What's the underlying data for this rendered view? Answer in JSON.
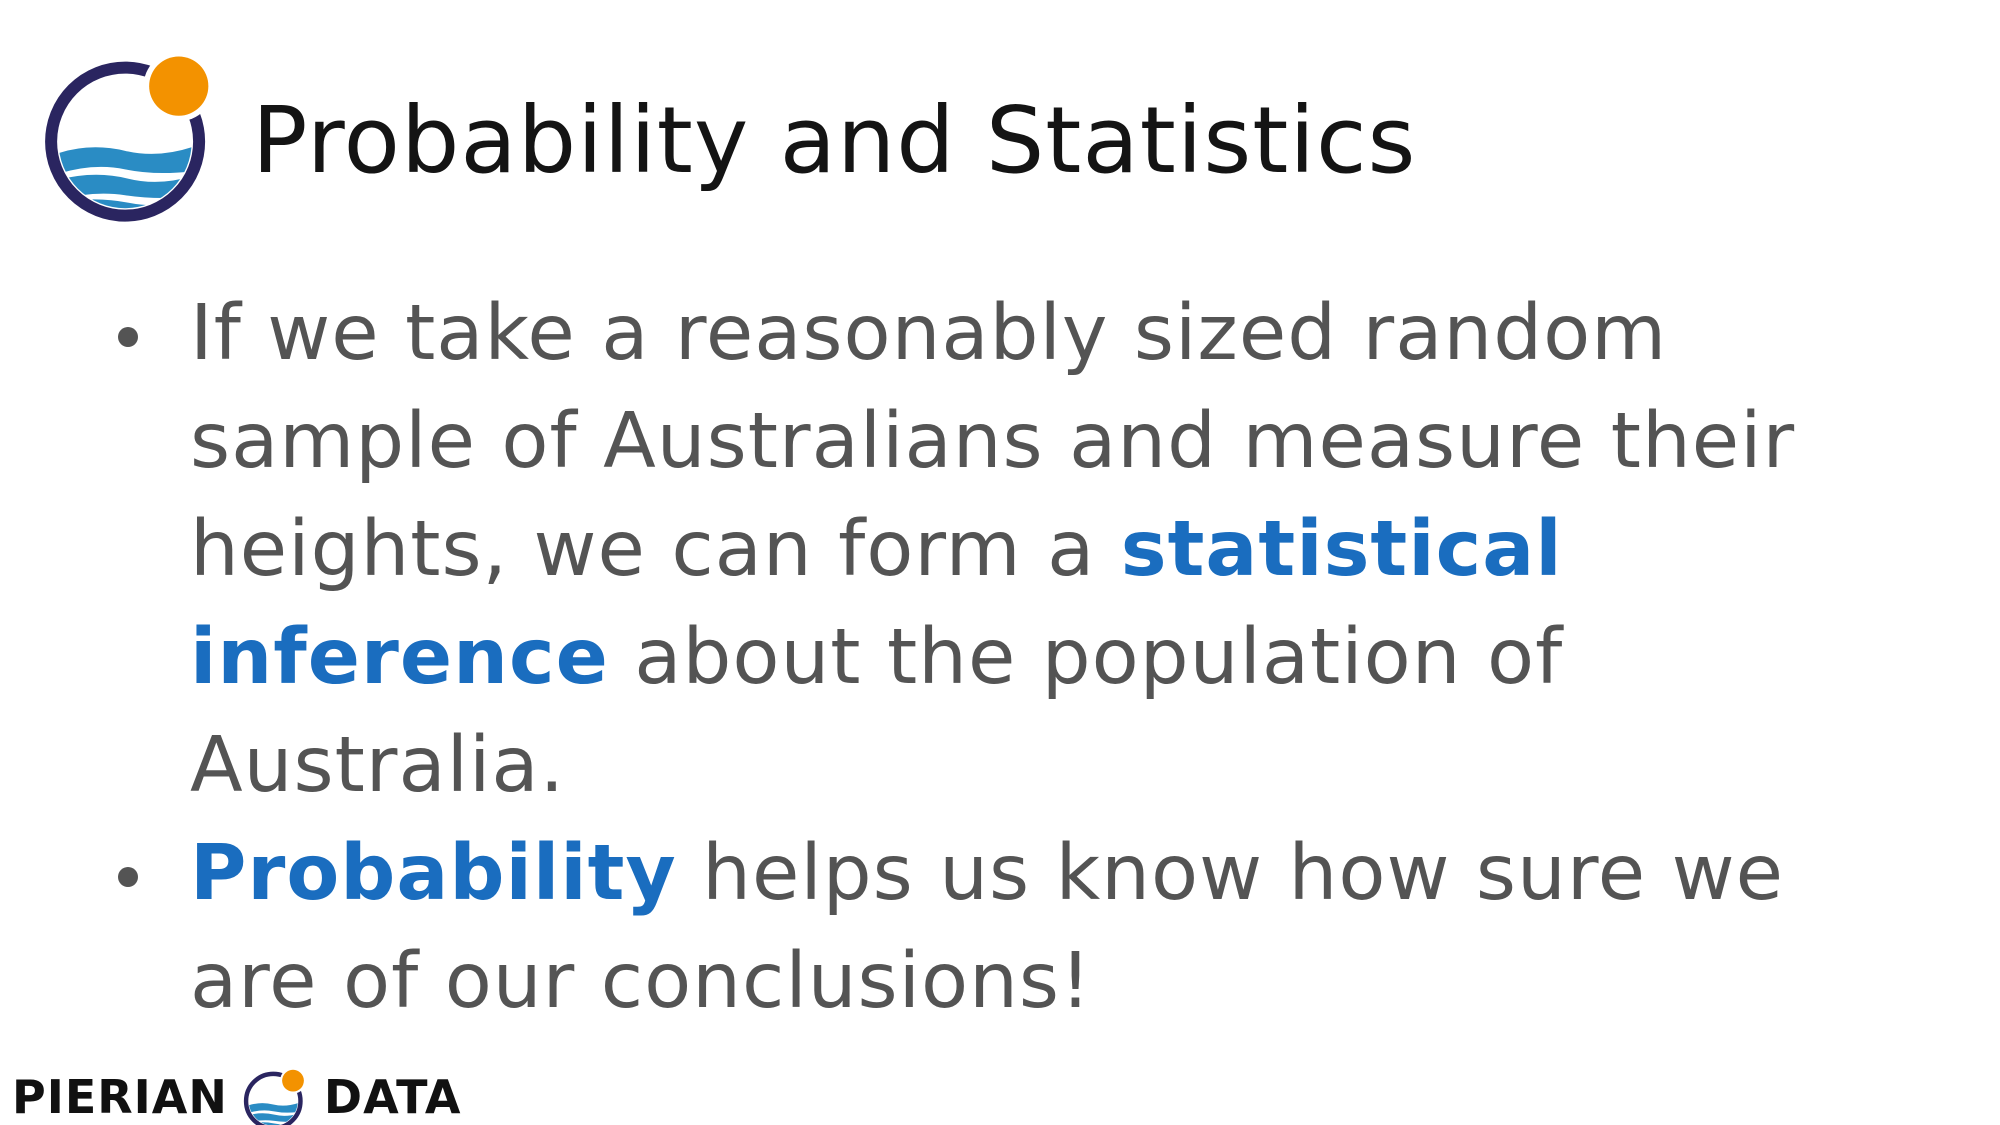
{
  "header": {
    "title": "Probability and Statistics",
    "logo_icon": "pierian-data-logo-icon"
  },
  "bullets": [
    {
      "before": "If we take a reasonably sized random sample of Australians and measure their heights, we can form a ",
      "highlight": "statistical inference",
      "after": " about the population of Australia."
    },
    {
      "before": "",
      "highlight": "Probability",
      "after": " helps us know how sure we are of our conclusions!"
    }
  ],
  "footer": {
    "brand_left": "PIERIAN",
    "brand_right": "DATA",
    "logo_icon": "pierian-data-logo-icon"
  },
  "colors": {
    "highlight": "#1a6dbf",
    "body_text": "#545454",
    "title_text": "#141414",
    "logo_ring": "#2a2560",
    "logo_sun": "#f39200",
    "logo_wave": "#2a8cc4"
  }
}
